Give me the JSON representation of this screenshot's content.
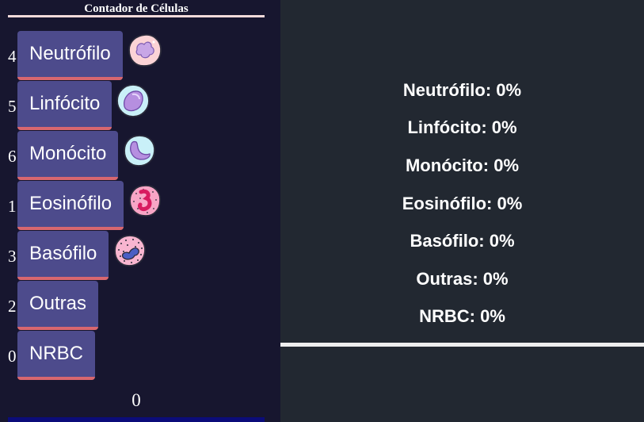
{
  "title": "Contador de Células",
  "cells": [
    {
      "key": "4",
      "label": "Neutrófilo",
      "percent": "0%"
    },
    {
      "key": "5",
      "label": "Linfócito",
      "percent": "0%"
    },
    {
      "key": "6",
      "label": "Monócito",
      "percent": "0%"
    },
    {
      "key": "1",
      "label": "Eosinófilo",
      "percent": "0%"
    },
    {
      "key": "3",
      "label": "Basófilo",
      "percent": "0%"
    },
    {
      "key": "2",
      "label": "Outras",
      "percent": "0%"
    },
    {
      "key": "0",
      "label": "NRBC",
      "percent": "0%"
    }
  ],
  "total": "0",
  "colors": {
    "panel_bg": "#17162f",
    "button_bg": "#4d4b8c",
    "button_border": "#d8676f",
    "results_bg": "#222831"
  },
  "icons": [
    "neutrophil-icon",
    "lymphocyte-icon",
    "monocyte-icon",
    "eosinophil-icon",
    "basophil-icon"
  ]
}
